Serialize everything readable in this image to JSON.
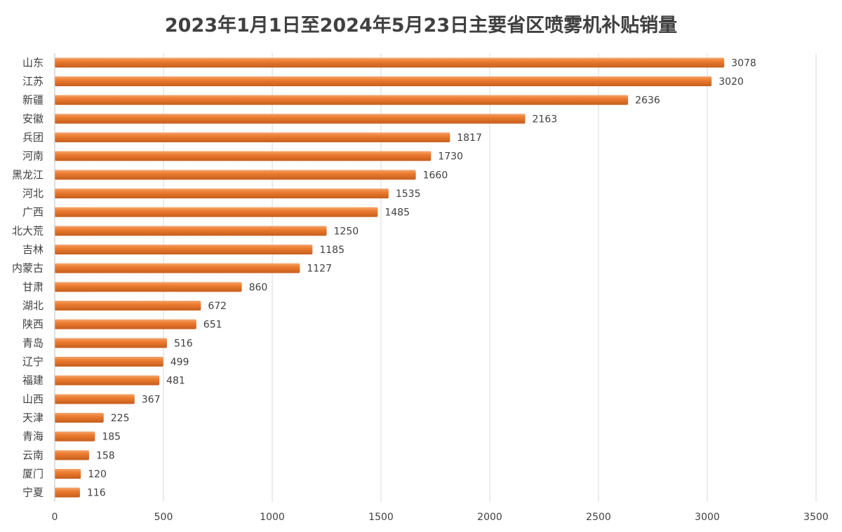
{
  "chart_data": {
    "type": "bar",
    "orientation": "horizontal",
    "title": "2023年1月1日至2024年5月23日主要省区喷雾机补贴销量",
    "categories": [
      "山东",
      "江苏",
      "新疆",
      "安徽",
      "兵团",
      "河南",
      "黑龙江",
      "河北",
      "广西",
      "北大荒",
      "吉林",
      "内蒙古",
      "甘肃",
      "湖北",
      "陕西",
      "青岛",
      "辽宁",
      "福建",
      "山西",
      "天津",
      "青海",
      "云南",
      "厦门",
      "宁夏"
    ],
    "values": [
      3078,
      3020,
      2636,
      2163,
      1817,
      1730,
      1660,
      1535,
      1485,
      1250,
      1185,
      1127,
      860,
      672,
      651,
      516,
      499,
      481,
      367,
      225,
      185,
      158,
      120,
      116
    ],
    "xlim": [
      0,
      3500
    ],
    "xticks": [
      0,
      500,
      1000,
      1500,
      2000,
      2500,
      3000,
      3500
    ],
    "grid": "vertical",
    "data_labels": true,
    "legend": "none",
    "bar_color": "#ED7D31",
    "bar_highlight": "#F4A66F",
    "bar_shadow": "#C65E1C"
  }
}
